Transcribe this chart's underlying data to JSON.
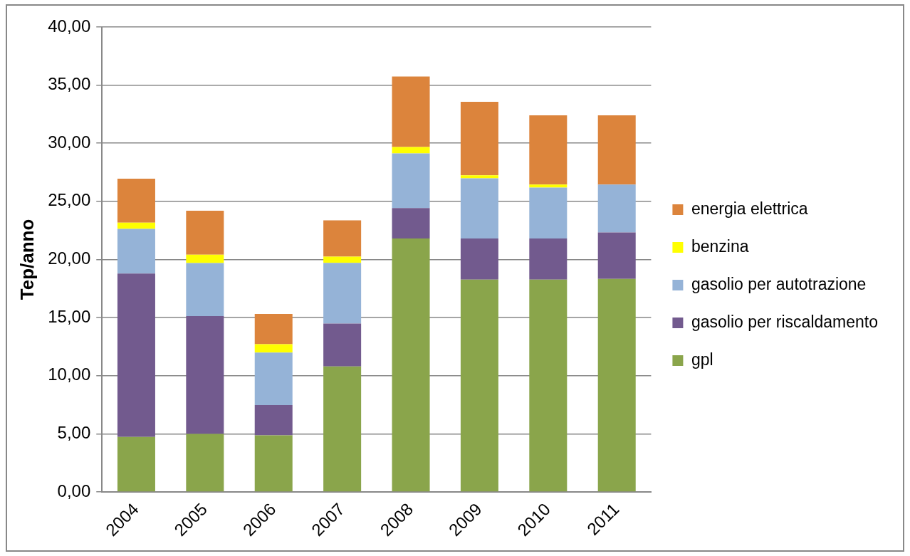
{
  "chart_data": {
    "type": "bar",
    "stacked": true,
    "ylabel": "Tep/anno",
    "categories": [
      "2004",
      "2005",
      "2006",
      "2007",
      "2008",
      "2009",
      "2010",
      "2011"
    ],
    "series": [
      {
        "name": "gpl",
        "color": "#8aa54b",
        "values": [
          4.73,
          4.99,
          4.86,
          10.79,
          21.81,
          18.26,
          18.26,
          18.33
        ]
      },
      {
        "name": "gasolio per riscaldamento",
        "color": "#725a8e",
        "values": [
          14.05,
          10.13,
          2.61,
          3.69,
          2.62,
          3.55,
          3.55,
          4.0
        ]
      },
      {
        "name": "gasolio per autotrazione",
        "color": "#95b3d7",
        "values": [
          3.85,
          4.57,
          4.51,
          5.23,
          4.69,
          5.17,
          4.38,
          4.12
        ]
      },
      {
        "name": "benzina",
        "color": "#ffff00",
        "values": [
          0.53,
          0.72,
          0.72,
          0.53,
          0.55,
          0.26,
          0.26,
          0
        ]
      },
      {
        "name": "energia elettrica",
        "color": "#dc843c",
        "values": [
          3.79,
          3.79,
          2.61,
          3.12,
          6.07,
          6.33,
          5.95,
          5.95
        ]
      }
    ],
    "ylim": [
      0,
      40
    ],
    "yticks": [
      {
        "value": 0,
        "label": "0,00"
      },
      {
        "value": 5,
        "label": "5,00"
      },
      {
        "value": 10,
        "label": "10,00"
      },
      {
        "value": 15,
        "label": "15,00"
      },
      {
        "value": 20,
        "label": "20,00"
      },
      {
        "value": 25,
        "label": "25,00"
      },
      {
        "value": 30,
        "label": "30,00"
      },
      {
        "value": 35,
        "label": "35,00"
      },
      {
        "value": 40,
        "label": "40,00"
      }
    ],
    "grid": "y",
    "legend": "right"
  }
}
